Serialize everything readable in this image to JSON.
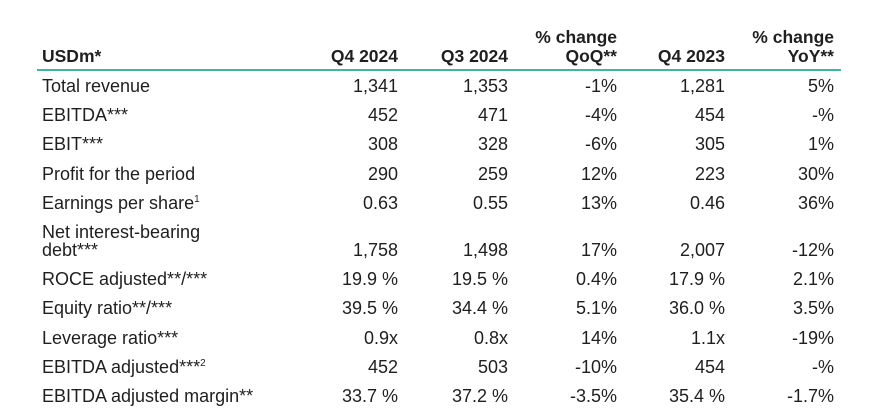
{
  "table": {
    "columns": [
      [
        "USDm*"
      ],
      [
        "Q4 2024"
      ],
      [
        "Q3 2024"
      ],
      [
        "% change",
        "QoQ**"
      ],
      [
        "Q4 2023"
      ],
      [
        "% change",
        "YoY**"
      ]
    ],
    "rows": [
      {
        "label": [
          "Total revenue"
        ],
        "values": [
          "1,341",
          "1,353",
          "-1%",
          "1,281",
          "5%"
        ]
      },
      {
        "label": [
          "EBITDA***"
        ],
        "values": [
          "452",
          "471",
          "-4%",
          "454",
          "-%"
        ]
      },
      {
        "label": [
          "EBIT***"
        ],
        "values": [
          "308",
          "328",
          "-6%",
          "305",
          "1%"
        ]
      },
      {
        "label": [
          "Profit for the period"
        ],
        "values": [
          "290",
          "259",
          "12%",
          "223",
          "30%"
        ]
      },
      {
        "label": [
          "Earnings per share"
        ],
        "note": "1",
        "values": [
          "0.63",
          "0.55",
          "13%",
          "0.46",
          "36%"
        ]
      },
      {
        "label": [
          "Net interest-bearing",
          "debt***"
        ],
        "values": [
          "1,758",
          "1,498",
          "17%",
          "2,007",
          "-12%"
        ]
      },
      {
        "label": [
          "ROCE adjusted**/***"
        ],
        "values": [
          "19.9 %",
          "19.5 %",
          "0.4%",
          "17.9 %",
          "2.1%"
        ]
      },
      {
        "label": [
          "Equity ratio**/***"
        ],
        "values": [
          "39.5 %",
          "34.4 %",
          "5.1%",
          "36.0 %",
          "3.5%"
        ]
      },
      {
        "label": [
          "Leverage ratio***"
        ],
        "values": [
          "0.9x",
          "0.8x",
          "14%",
          "1.1x",
          "-19%"
        ]
      },
      {
        "label": [
          "EBITDA adjusted***"
        ],
        "note": "2",
        "values": [
          "452",
          "503",
          "-10%",
          "454",
          "-%"
        ]
      },
      {
        "label": [
          "EBITDA adjusted margin**"
        ],
        "values": [
          "33.7 %",
          "37.2 %",
          "-3.5%",
          "35.4 %",
          "-1.7%"
        ]
      }
    ]
  }
}
